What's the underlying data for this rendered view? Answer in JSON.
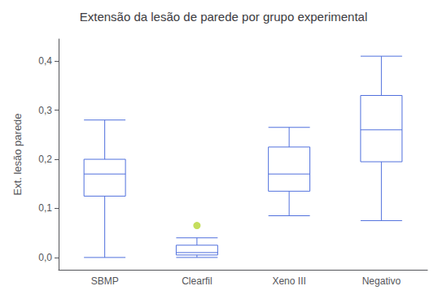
{
  "chart_data": {
    "type": "box",
    "title": "Extensão da lesão de parede por grupo experimental",
    "ylabel": "Ext. lesão parede",
    "categories": [
      "SBMP",
      "Clearfil",
      "Xeno III",
      "Negativo"
    ],
    "values": [
      {
        "whislo": 0.0,
        "q1": 0.125,
        "med": 0.17,
        "q3": 0.2,
        "whishi": 0.28,
        "fliers": []
      },
      {
        "whislo": 0.0,
        "q1": 0.005,
        "med": 0.01,
        "q3": 0.025,
        "whishi": 0.04,
        "fliers": [
          0.065
        ]
      },
      {
        "whislo": 0.085,
        "q1": 0.135,
        "med": 0.17,
        "q3": 0.225,
        "whishi": 0.265,
        "fliers": []
      },
      {
        "whislo": 0.075,
        "q1": 0.195,
        "med": 0.26,
        "q3": 0.33,
        "whishi": 0.41,
        "fliers": []
      }
    ],
    "ylim": [
      -0.025,
      0.445
    ],
    "yticks": [
      {
        "value": 0.0,
        "label": "0,0"
      },
      {
        "value": 0.1,
        "label": "0,1"
      },
      {
        "value": 0.2,
        "label": "0,2"
      },
      {
        "value": 0.3,
        "label": "0,3"
      },
      {
        "value": 0.4,
        "label": "0,4"
      }
    ],
    "grid": false
  }
}
